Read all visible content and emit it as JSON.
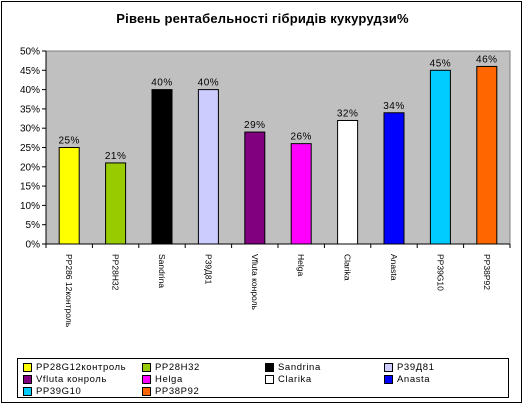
{
  "chart_data": {
    "type": "bar",
    "title": "Рівень рентабельності гібридів кукурудзи%",
    "categories": [
      "РР286 12контроль",
      "РР28Н32",
      "Sandrina",
      "Р39Д81",
      "Vfluta конроль",
      "Helga",
      "Clarika",
      "Anasta",
      "РР39G10",
      "РР38Р92"
    ],
    "values": [
      25,
      21,
      40,
      40,
      29,
      26,
      32,
      34,
      45,
      46
    ],
    "data_labels": [
      "25%",
      "21%",
      "40%",
      "40%",
      "29%",
      "26%",
      "32%",
      "34%",
      "45%",
      "46%"
    ],
    "colors": [
      "#ffff00",
      "#99cc00",
      "#000000",
      "#ccccff",
      "#800080",
      "#ff00ff",
      "#ffffff",
      "#0000ff",
      "#00ccff",
      "#ff6600"
    ],
    "ylim": [
      0,
      50
    ],
    "yticks": [
      "0%",
      "5%",
      "10%",
      "15%",
      "20%",
      "25%",
      "30%",
      "35%",
      "40%",
      "45%",
      "50%"
    ],
    "grid": false,
    "plot_background": "#c0c0c0",
    "legend": {
      "placement": "bottom",
      "entries": [
        "РР28G12контроль",
        "РР28Н32",
        "Sandrina",
        "Р39Д81",
        "Vfluta конроль",
        "Helga",
        "Clarika",
        "Anasta",
        "РР39G10",
        "РР38Р92"
      ]
    }
  }
}
